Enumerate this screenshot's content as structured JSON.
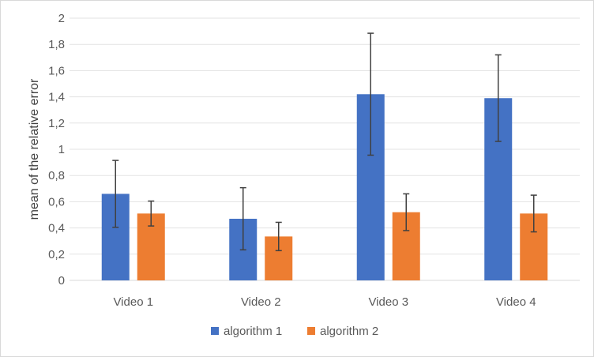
{
  "chart_data": {
    "type": "bar",
    "title": "",
    "xlabel": "",
    "ylabel": "mean of the relative error",
    "categories": [
      "Video 1",
      "Video 2",
      "Video 3",
      "Video 4"
    ],
    "series": [
      {
        "name": "algorithm 1",
        "color": "#4472c4",
        "values": [
          0.66,
          0.47,
          1.42,
          1.39
        ],
        "error": [
          0.255,
          0.237,
          0.465,
          0.33
        ]
      },
      {
        "name": "algorithm 2",
        "color": "#ed7d31",
        "values": [
          0.51,
          0.335,
          0.52,
          0.51
        ],
        "error": [
          0.095,
          0.108,
          0.14,
          0.14
        ]
      }
    ],
    "ylim": [
      0,
      2
    ],
    "yticks": [
      0,
      0.2,
      0.4,
      0.6,
      0.8,
      1,
      1.2,
      1.4,
      1.6,
      1.8,
      2
    ],
    "ytick_labels": [
      "0",
      "0,2",
      "0,4",
      "0,6",
      "0,8",
      "1",
      "1,2",
      "1,4",
      "1,6",
      "1,8",
      "2"
    ],
    "grid": true,
    "error_bars": true,
    "legend_position": "bottom"
  }
}
